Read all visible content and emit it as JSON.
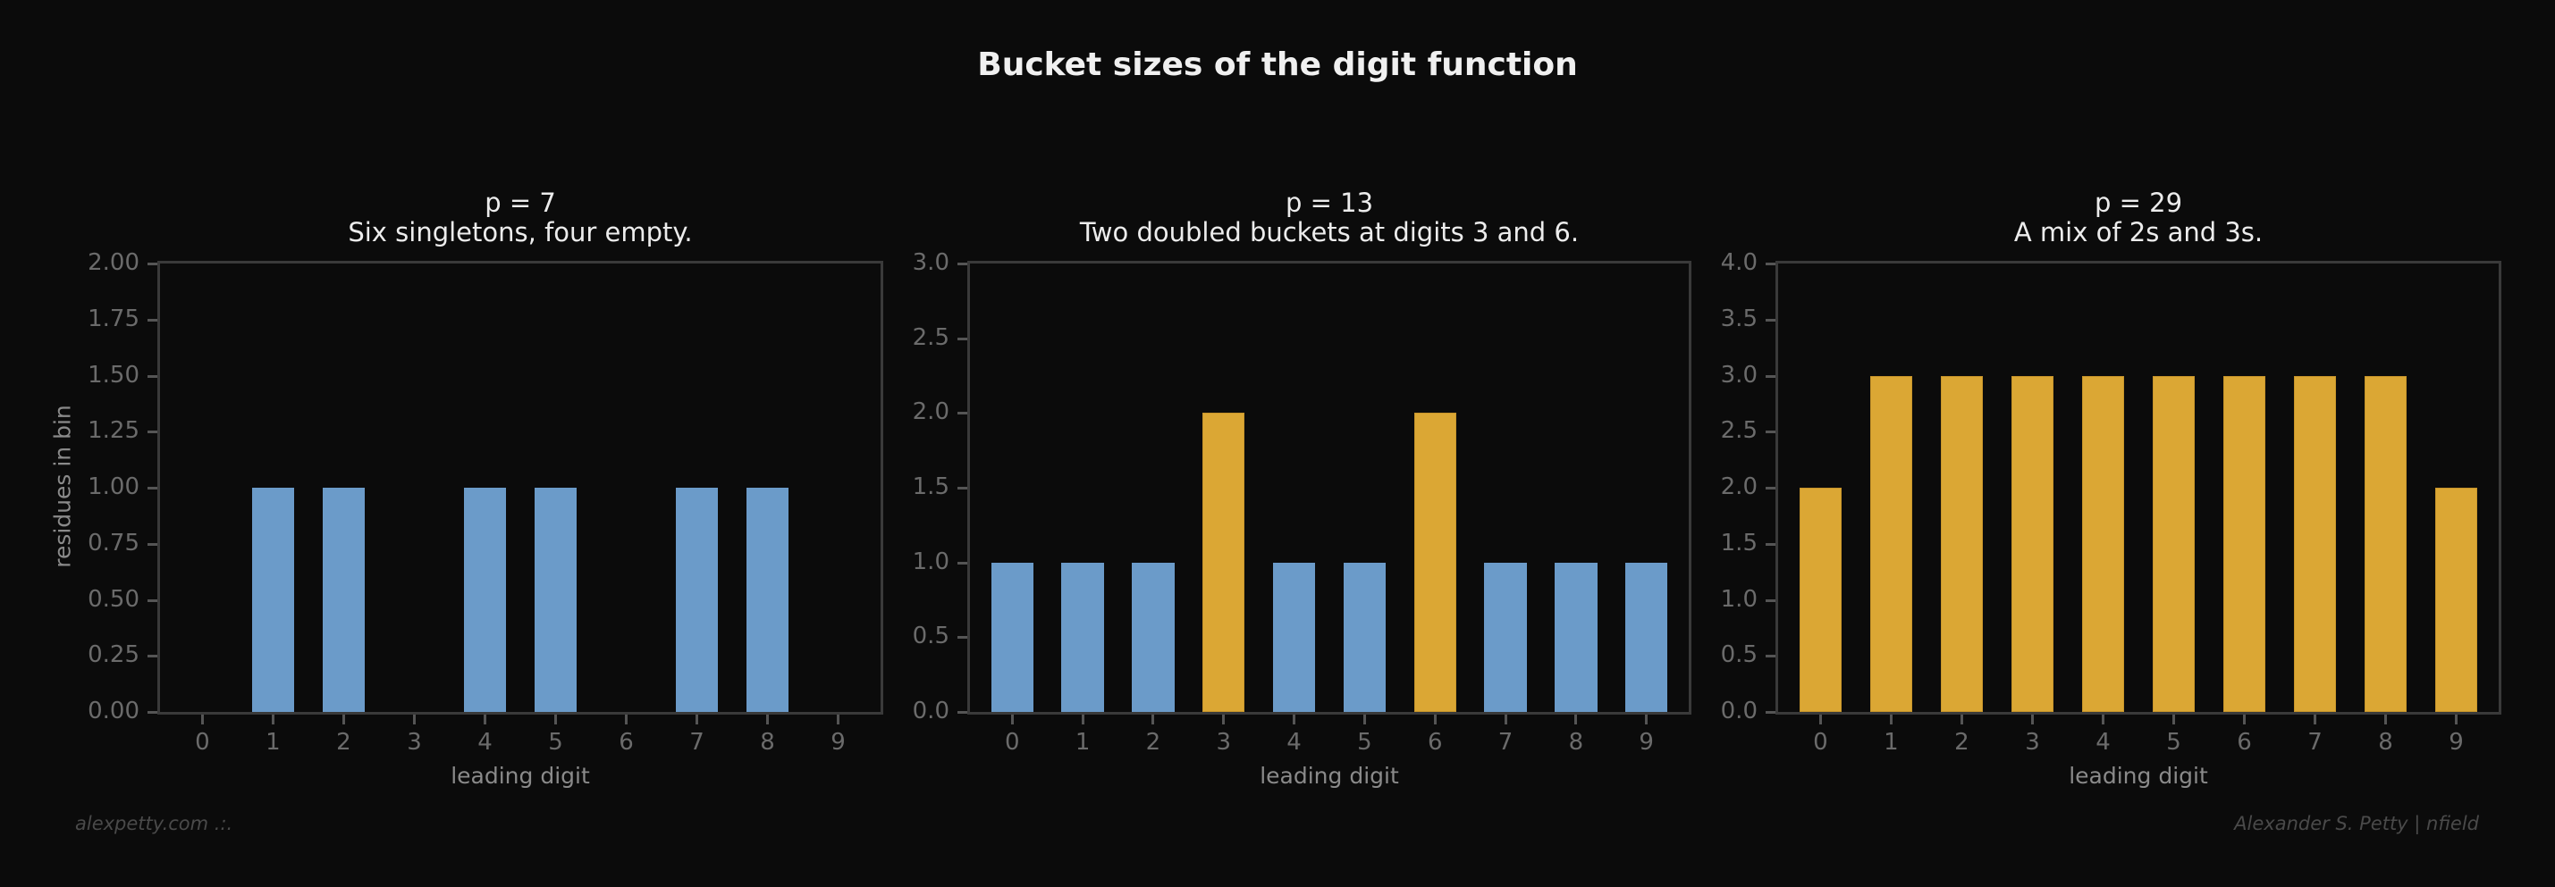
{
  "figure": {
    "suptitle": "Bucket sizes of the digit function",
    "footer_left": "alexpetty.com  .:.",
    "footer_right": "Alexander S. Petty  |  nfield",
    "colors": {
      "background": "#0b0b0b",
      "singleton_blue": "#6b9bc9",
      "multi_gold": "#dba734",
      "axes_frame": "#3a3a3a",
      "tick_label": "#6b6b6b"
    }
  },
  "chart_data": [
    {
      "type": "bar",
      "title": "p = 7",
      "subtitle": "Six singletons, four empty.",
      "xlabel": "leading digit",
      "ylabel": "residues in bin",
      "categories": [
        "0",
        "1",
        "2",
        "3",
        "4",
        "5",
        "6",
        "7",
        "8",
        "9"
      ],
      "values": [
        0,
        1,
        1,
        0,
        1,
        1,
        0,
        1,
        1,
        0
      ],
      "bar_colors": [
        "#6b9bc9",
        "#6b9bc9",
        "#6b9bc9",
        "#6b9bc9",
        "#6b9bc9",
        "#6b9bc9",
        "#6b9bc9",
        "#6b9bc9",
        "#6b9bc9",
        "#6b9bc9"
      ],
      "ylim": [
        0,
        2.0
      ],
      "yticks": [
        "0.00",
        "0.25",
        "0.50",
        "0.75",
        "1.00",
        "1.25",
        "1.50",
        "1.75",
        "2.00"
      ],
      "grid": false
    },
    {
      "type": "bar",
      "title": "p = 13",
      "subtitle": "Two doubled buckets at digits 3 and 6.",
      "xlabel": "leading digit",
      "ylabel": "",
      "categories": [
        "0",
        "1",
        "2",
        "3",
        "4",
        "5",
        "6",
        "7",
        "8",
        "9"
      ],
      "values": [
        1,
        1,
        1,
        2,
        1,
        1,
        2,
        1,
        1,
        1
      ],
      "bar_colors": [
        "#6b9bc9",
        "#6b9bc9",
        "#6b9bc9",
        "#dba734",
        "#6b9bc9",
        "#6b9bc9",
        "#dba734",
        "#6b9bc9",
        "#6b9bc9",
        "#6b9bc9"
      ],
      "ylim": [
        0,
        3.0
      ],
      "yticks": [
        "0.0",
        "0.5",
        "1.0",
        "1.5",
        "2.0",
        "2.5",
        "3.0"
      ],
      "grid": false
    },
    {
      "type": "bar",
      "title": "p = 29",
      "subtitle": "A mix of 2s and 3s.",
      "xlabel": "leading digit",
      "ylabel": "",
      "categories": [
        "0",
        "1",
        "2",
        "3",
        "4",
        "5",
        "6",
        "7",
        "8",
        "9"
      ],
      "values": [
        2,
        3,
        3,
        3,
        3,
        3,
        3,
        3,
        3,
        2
      ],
      "bar_colors": [
        "#dba734",
        "#dba734",
        "#dba734",
        "#dba734",
        "#dba734",
        "#dba734",
        "#dba734",
        "#dba734",
        "#dba734",
        "#dba734"
      ],
      "ylim": [
        0,
        4.0
      ],
      "yticks": [
        "0.0",
        "0.5",
        "1.0",
        "1.5",
        "2.0",
        "2.5",
        "3.0",
        "3.5",
        "4.0"
      ],
      "grid": false
    }
  ]
}
